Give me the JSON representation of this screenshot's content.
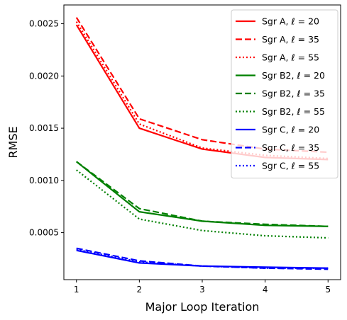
{
  "chart_data": {
    "type": "line",
    "title": "",
    "xlabel": "Major Loop Iteration",
    "ylabel": "RMSE",
    "x": [
      1,
      2,
      3,
      4,
      5
    ],
    "xticks": [
      "1",
      "2",
      "3",
      "4",
      "5"
    ],
    "yticks": [
      {
        "value": 0.0005,
        "label": "0.0005"
      },
      {
        "value": 0.001,
        "label": "0.0010"
      },
      {
        "value": 0.0015,
        "label": "0.0015"
      },
      {
        "value": 0.002,
        "label": "0.0020"
      },
      {
        "value": 0.0025,
        "label": "0.0025"
      }
    ],
    "xlim": [
      0.8,
      5.2
    ],
    "ylim": [
      5e-05,
      0.00268
    ],
    "grid": false,
    "legend_position": "top-right",
    "series": [
      {
        "name": "Sgr A, ℓ = 20",
        "color": "#ff0000",
        "style": "solid",
        "values": [
          0.00249,
          0.0015,
          0.0013,
          0.00122,
          0.0012
        ]
      },
      {
        "name": "Sgr A, ℓ = 35",
        "color": "#ff0000",
        "style": "dashed",
        "values": [
          0.00256,
          0.00159,
          0.00139,
          0.0013,
          0.00127
        ]
      },
      {
        "name": "Sgr A, ℓ = 55",
        "color": "#ff0000",
        "style": "dotted",
        "values": [
          0.00252,
          0.00154,
          0.00131,
          0.00124,
          0.00121
        ]
      },
      {
        "name": "Sgr B2, ℓ = 20",
        "color": "#008000",
        "style": "solid",
        "values": [
          0.00118,
          0.0007,
          0.00061,
          0.00057,
          0.00056
        ]
      },
      {
        "name": "Sgr B2, ℓ = 35",
        "color": "#008000",
        "style": "dashed",
        "values": [
          0.00118,
          0.00073,
          0.00061,
          0.00058,
          0.00056
        ]
      },
      {
        "name": "Sgr B2, ℓ = 55",
        "color": "#008000",
        "style": "dotted",
        "values": [
          0.0011,
          0.00063,
          0.00052,
          0.00047,
          0.00045
        ]
      },
      {
        "name": "Sgr C, ℓ = 20",
        "color": "#0000ff",
        "style": "solid",
        "values": [
          0.00033,
          0.00021,
          0.00018,
          0.00017,
          0.00016
        ]
      },
      {
        "name": "Sgr C, ℓ = 35",
        "color": "#0000ff",
        "style": "dashed",
        "values": [
          0.00035,
          0.00023,
          0.00018,
          0.00016,
          0.00015
        ]
      },
      {
        "name": "Sgr C, ℓ = 55",
        "color": "#0000ff",
        "style": "dotted",
        "values": [
          0.00034,
          0.00022,
          0.00018,
          0.00016,
          0.00016
        ]
      }
    ]
  }
}
